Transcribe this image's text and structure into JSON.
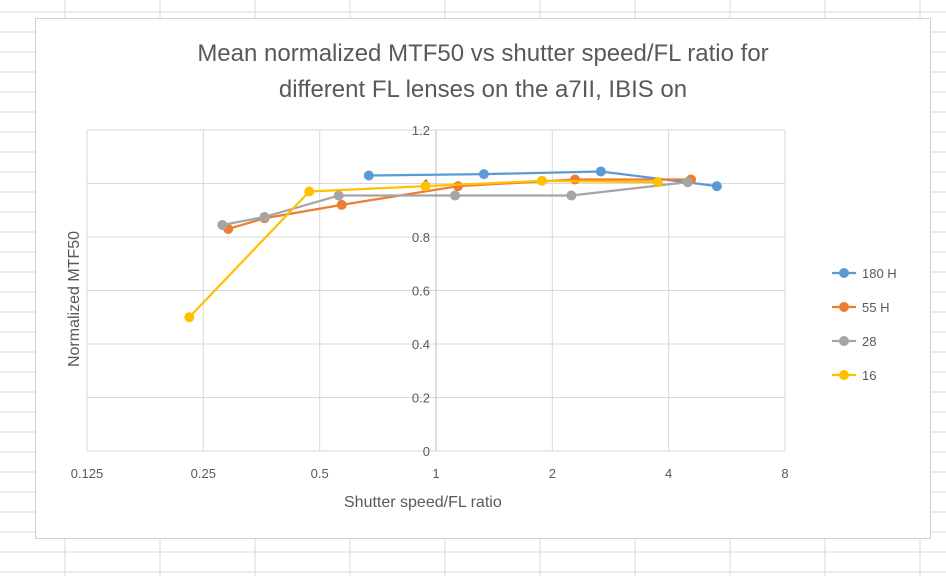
{
  "chart_data": {
    "type": "line",
    "title_line1": "Mean normalized MTF50 vs shutter speed/FL ratio for",
    "title_line2": "different FL lenses on the a7II, IBIS on",
    "xlabel": "Shutter speed/FL ratio",
    "ylabel": "Normalized MTF50",
    "x_scale": "log2",
    "xlim": [
      0.125,
      8
    ],
    "ylim": [
      0,
      1.2
    ],
    "x_ticks": [
      "0.125",
      "0.25",
      "0.5",
      "1",
      "2",
      "4",
      "8"
    ],
    "y_ticks": [
      "0",
      "0.2",
      "0.4",
      "0.6",
      "0.8",
      "1",
      "1.2"
    ],
    "grid": true,
    "legend_position": "right",
    "series": [
      {
        "name": "180 H",
        "color": "#5b9bd5",
        "x": [
          0.67,
          1.33,
          2.67,
          5.33
        ],
        "y": [
          1.03,
          1.035,
          1.045,
          0.99
        ]
      },
      {
        "name": "55 H",
        "color": "#ed7d31",
        "x": [
          0.29,
          0.36,
          0.57,
          1.14,
          2.29,
          4.57
        ],
        "y": [
          0.83,
          0.87,
          0.92,
          0.99,
          1.015,
          1.015
        ]
      },
      {
        "name": "28",
        "color": "#a5a5a5",
        "x": [
          0.28,
          0.36,
          0.56,
          1.12,
          2.24,
          4.48
        ],
        "y": [
          0.845,
          0.875,
          0.955,
          0.955,
          0.955,
          1.005
        ]
      },
      {
        "name": "16",
        "color": "#ffc000",
        "x": [
          0.23,
          0.47,
          0.94,
          1.88,
          3.75
        ],
        "y": [
          0.5,
          0.97,
          0.99,
          1.01,
          1.005
        ]
      }
    ]
  }
}
